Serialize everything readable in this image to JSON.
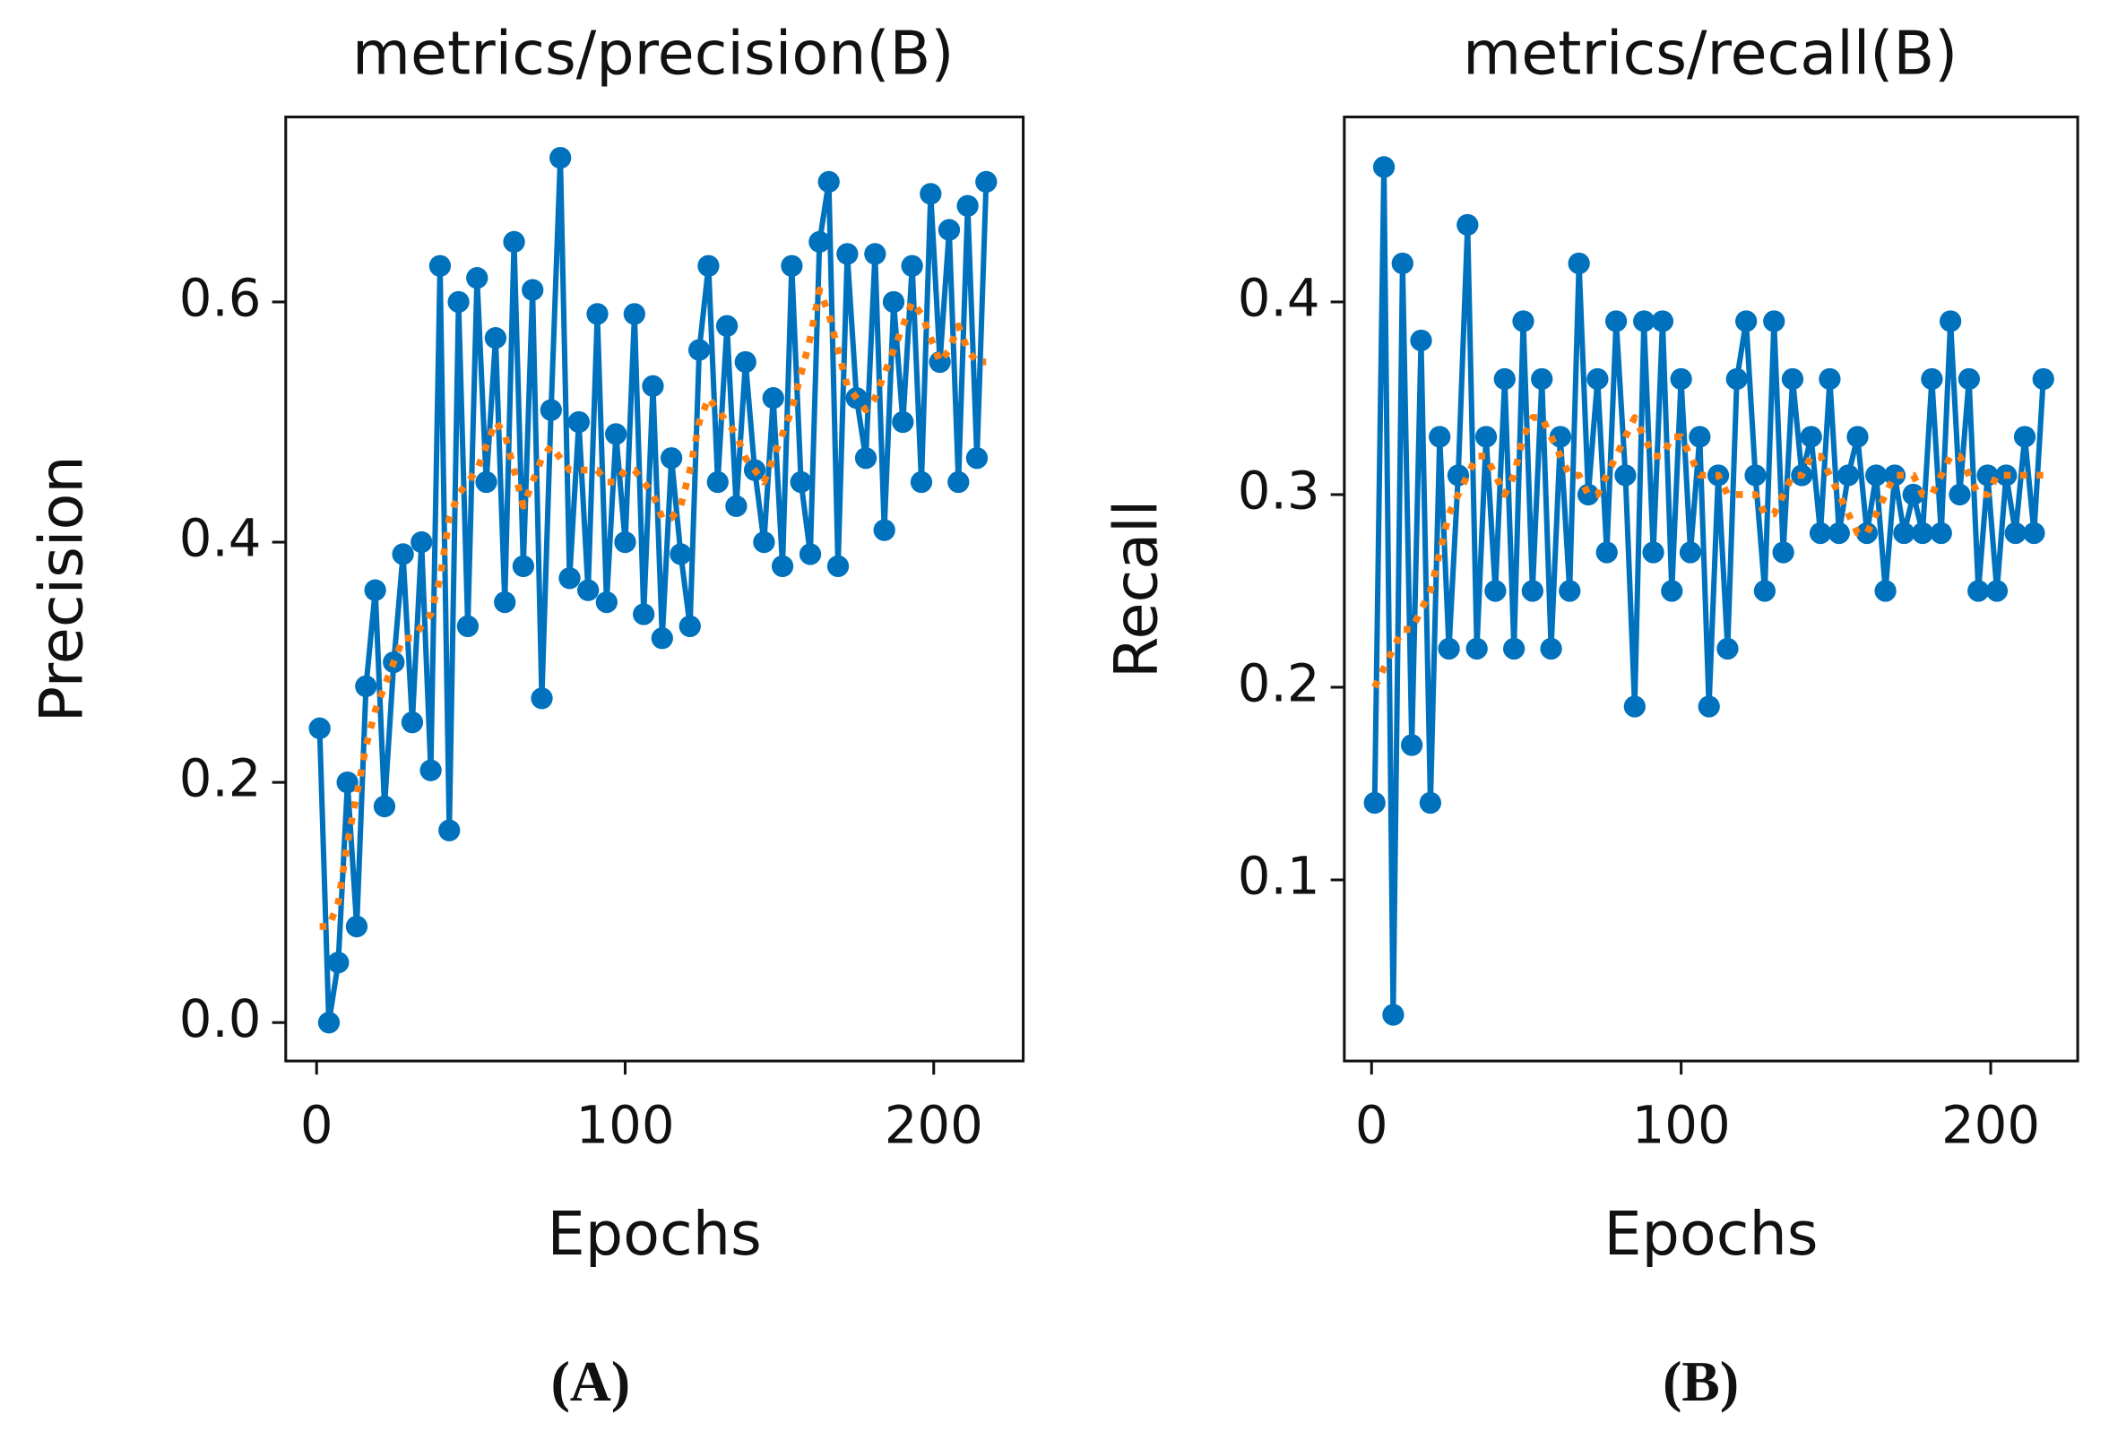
{
  "chart_data": [
    {
      "type": "line",
      "title": "metrics/precision(B)",
      "xlabel": "Epochs",
      "ylabel": "Precision",
      "panel_label": "(A)",
      "x": [
        1,
        4,
        7,
        10,
        13,
        16,
        19,
        22,
        25,
        28,
        31,
        34,
        37,
        40,
        43,
        46,
        49,
        52,
        55,
        58,
        61,
        64,
        67,
        70,
        73,
        76,
        79,
        82,
        85,
        88,
        91,
        94,
        97,
        100,
        103,
        106,
        109,
        112,
        115,
        118,
        121,
        124,
        127,
        130,
        133,
        136,
        139,
        142,
        145,
        148,
        151,
        154,
        157,
        160,
        163,
        166,
        169,
        172,
        175,
        178,
        181,
        184,
        187,
        190,
        193,
        196,
        199,
        202,
        205,
        208,
        211,
        214,
        217
      ],
      "series": [
        {
          "color": "#0072bd",
          "linestyle": "solid",
          "marker": "o",
          "values": [
            0.245,
            0.0,
            0.05,
            0.2,
            0.08,
            0.28,
            0.36,
            0.18,
            0.3,
            0.39,
            0.25,
            0.4,
            0.21,
            0.63,
            0.16,
            0.6,
            0.33,
            0.62,
            0.45,
            0.57,
            0.35,
            0.65,
            0.38,
            0.61,
            0.27,
            0.51,
            0.72,
            0.37,
            0.5,
            0.36,
            0.59,
            0.35,
            0.49,
            0.4,
            0.59,
            0.34,
            0.53,
            0.32,
            0.47,
            0.39,
            0.33,
            0.56,
            0.63,
            0.45,
            0.58,
            0.43,
            0.55,
            0.46,
            0.4,
            0.52,
            0.38,
            0.63,
            0.45,
            0.39,
            0.65,
            0.7,
            0.38,
            0.64,
            0.52,
            0.47,
            0.64,
            0.41,
            0.6,
            0.5,
            0.63,
            0.45,
            0.69,
            0.55,
            0.66,
            0.45,
            0.68,
            0.47,
            0.7
          ]
        },
        {
          "color": "#ff7f0e",
          "linestyle": "dotted",
          "marker": "none",
          "values": [
            0.08,
            0.08,
            0.1,
            0.15,
            0.19,
            0.23,
            0.26,
            0.28,
            0.3,
            0.32,
            0.32,
            0.33,
            0.34,
            0.37,
            0.42,
            0.44,
            0.45,
            0.46,
            0.48,
            0.5,
            0.49,
            0.46,
            0.43,
            0.45,
            0.47,
            0.48,
            0.47,
            0.46,
            0.46,
            0.46,
            0.46,
            0.45,
            0.45,
            0.46,
            0.46,
            0.45,
            0.44,
            0.42,
            0.42,
            0.43,
            0.46,
            0.5,
            0.52,
            0.51,
            0.5,
            0.49,
            0.47,
            0.46,
            0.45,
            0.47,
            0.49,
            0.51,
            0.54,
            0.57,
            0.61,
            0.59,
            0.56,
            0.53,
            0.52,
            0.51,
            0.52,
            0.54,
            0.56,
            0.58,
            0.6,
            0.59,
            0.57,
            0.55,
            0.56,
            0.58,
            0.56,
            0.55,
            0.55
          ]
        }
      ],
      "xlim": [
        -10,
        229
      ],
      "ylim": [
        -0.032,
        0.754
      ],
      "xticks": [
        0,
        100,
        200
      ],
      "yticks": [
        {
          "value": 0,
          "label": "0.0"
        },
        0.2,
        0.4,
        0.6
      ]
    },
    {
      "type": "line",
      "title": "metrics/recall(B)",
      "xlabel": "Epochs",
      "ylabel": "Recall",
      "panel_label": "(B)",
      "x": [
        1,
        4,
        7,
        10,
        13,
        16,
        19,
        22,
        25,
        28,
        31,
        34,
        37,
        40,
        43,
        46,
        49,
        52,
        55,
        58,
        61,
        64,
        67,
        70,
        73,
        76,
        79,
        82,
        85,
        88,
        91,
        94,
        97,
        100,
        103,
        106,
        109,
        112,
        115,
        118,
        121,
        124,
        127,
        130,
        133,
        136,
        139,
        142,
        145,
        148,
        151,
        154,
        157,
        160,
        163,
        166,
        169,
        172,
        175,
        178,
        181,
        184,
        187,
        190,
        193,
        196,
        199,
        202,
        205,
        208,
        211,
        214,
        217
      ],
      "series": [
        {
          "color": "#0072bd",
          "linestyle": "solid",
          "marker": "o",
          "values": [
            0.14,
            0.47,
            0.03,
            0.42,
            0.17,
            0.38,
            0.14,
            0.33,
            0.22,
            0.31,
            0.44,
            0.22,
            0.33,
            0.25,
            0.36,
            0.22,
            0.39,
            0.25,
            0.36,
            0.22,
            0.33,
            0.25,
            0.42,
            0.3,
            0.36,
            0.27,
            0.39,
            0.31,
            0.19,
            0.39,
            0.27,
            0.39,
            0.25,
            0.36,
            0.27,
            0.33,
            0.19,
            0.31,
            0.22,
            0.36,
            0.39,
            0.31,
            0.25,
            0.39,
            0.27,
            0.36,
            0.31,
            0.33,
            0.28,
            0.36,
            0.28,
            0.31,
            0.33,
            0.28,
            0.31,
            0.25,
            0.31,
            0.28,
            0.3,
            0.28,
            0.36,
            0.28,
            0.39,
            0.3,
            0.36,
            0.25,
            0.31,
            0.25,
            0.31,
            0.28,
            0.33,
            0.28,
            0.36
          ]
        },
        {
          "color": "#ff7f0e",
          "linestyle": "dotted",
          "marker": "none",
          "values": [
            0.2,
            0.21,
            0.22,
            0.23,
            0.23,
            0.24,
            0.25,
            0.27,
            0.29,
            0.3,
            0.31,
            0.32,
            0.32,
            0.31,
            0.3,
            0.31,
            0.33,
            0.34,
            0.34,
            0.33,
            0.32,
            0.31,
            0.31,
            0.3,
            0.3,
            0.31,
            0.32,
            0.33,
            0.34,
            0.33,
            0.32,
            0.32,
            0.33,
            0.33,
            0.32,
            0.31,
            0.31,
            0.31,
            0.3,
            0.3,
            0.3,
            0.3,
            0.29,
            0.29,
            0.3,
            0.31,
            0.31,
            0.32,
            0.32,
            0.31,
            0.3,
            0.29,
            0.28,
            0.28,
            0.29,
            0.3,
            0.31,
            0.31,
            0.31,
            0.3,
            0.3,
            0.31,
            0.32,
            0.32,
            0.31,
            0.3,
            0.3,
            0.31,
            0.31,
            0.31,
            0.31,
            0.31,
            0.31
          ]
        }
      ],
      "xlim": [
        -8.8,
        228.1
      ],
      "ylim": [
        0.006,
        0.496
      ],
      "xticks": [
        0,
        100,
        200
      ],
      "yticks": [
        0.1,
        0.2,
        0.3,
        0.4
      ]
    }
  ]
}
